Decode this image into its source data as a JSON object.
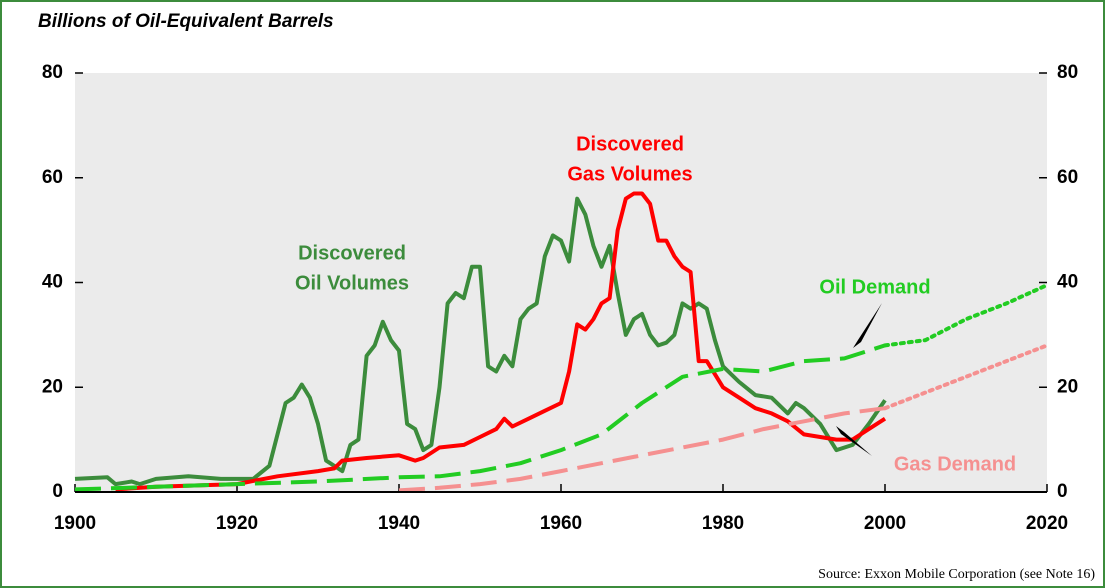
{
  "chart_data": {
    "type": "line",
    "title": "Billions of Oil-Equivalent Barrels",
    "source": "Source: Exxon Mobile Corporation (see Note 16)",
    "xlim": [
      1900,
      2020
    ],
    "xticks": [
      1900,
      1920,
      1940,
      1960,
      1980,
      2000,
      2020
    ],
    "ylim": [
      0,
      80
    ],
    "yticks": [
      0,
      20,
      40,
      60,
      80
    ],
    "y2lim": [
      0,
      80
    ],
    "y2ticks": [
      0,
      20,
      40,
      60,
      80
    ],
    "annotations": [
      {
        "text": "Discovered",
        "color": "#3c8c3c"
      },
      {
        "text": "Oil Volumes",
        "color": "#3c8c3c"
      },
      {
        "text": "Discovered",
        "color": "#ff0000"
      },
      {
        "text": "Gas Volumes",
        "color": "#ff0000"
      },
      {
        "text": "Oil Demand",
        "color": "#22cc22"
      },
      {
        "text": "Gas Demand",
        "color": "#f59090"
      }
    ],
    "series": [
      {
        "color": "#3c8c3c",
        "style": "solid",
        "x": [
          1900,
          1904,
          1905,
          1907,
          1908,
          1910,
          1914,
          1918,
          1922,
          1924,
          1926,
          1927,
          1928,
          1929,
          1930,
          1931,
          1932,
          1933,
          1934,
          1935,
          1936,
          1937,
          1938,
          1939,
          1940,
          1941,
          1942,
          1943,
          1944,
          1945,
          1946,
          1947,
          1948,
          1949,
          1950,
          1951,
          1952,
          1953,
          1954,
          1955,
          1956,
          1957,
          1958,
          1959,
          1960,
          1961,
          1962,
          1963,
          1964,
          1965,
          1966,
          1967,
          1968,
          1969,
          1970,
          1971,
          1972,
          1973,
          1974,
          1975,
          1976,
          1977,
          1978,
          1979,
          1980,
          1982,
          1984,
          1986,
          1988,
          1989,
          1990,
          1992,
          1994,
          1996,
          1998,
          2000
        ],
        "values": [
          2.5,
          2.8,
          1.5,
          2,
          1.5,
          2.5,
          3,
          2.5,
          2.5,
          5,
          17,
          18,
          20.5,
          18,
          13,
          6,
          5,
          4,
          9,
          10,
          26,
          28,
          32.5,
          29,
          27,
          13,
          12,
          8,
          9,
          20,
          36,
          38,
          37,
          43,
          43,
          24,
          23,
          26,
          24,
          33,
          35,
          36,
          45,
          49,
          48,
          44,
          56,
          53,
          47,
          43,
          47,
          38,
          30,
          33,
          34,
          30,
          28,
          28.5,
          30,
          36,
          35,
          36,
          35,
          29,
          24,
          21,
          18.5,
          18,
          15,
          17,
          16,
          13,
          8,
          9,
          13,
          17.5
        ]
      },
      {
        "color": "#ff0000",
        "style": "solid",
        "x": [
          1905,
          1910,
          1920,
          1925,
          1930,
          1932,
          1933,
          1936,
          1940,
          1942,
          1943,
          1945,
          1948,
          1950,
          1952,
          1953,
          1954,
          1956,
          1958,
          1960,
          1961,
          1962,
          1963,
          1964,
          1965,
          1966,
          1967,
          1968,
          1969,
          1970,
          1971,
          1972,
          1973,
          1974,
          1975,
          1976,
          1977,
          1978,
          1980,
          1982,
          1984,
          1986,
          1988,
          1990,
          1992,
          1994,
          1996,
          1998,
          2000
        ],
        "values": [
          0.5,
          1,
          1.5,
          3,
          4,
          4.5,
          6,
          6.5,
          7,
          6,
          6.5,
          8.5,
          9,
          10.5,
          12,
          14,
          12.5,
          14,
          15.5,
          17,
          23,
          32,
          31,
          33,
          36,
          37,
          50,
          56,
          57,
          57,
          55,
          48,
          48,
          45,
          43,
          42,
          25,
          25,
          20,
          18,
          16,
          15,
          13.5,
          11,
          10.5,
          10,
          10,
          12,
          14
        ]
      },
      {
        "color": "#22cc22",
        "style": "dashed",
        "x": [
          1900,
          1910,
          1920,
          1930,
          1940,
          1945,
          1950,
          1955,
          1960,
          1965,
          1970,
          1975,
          1980,
          1985,
          1990,
          1995,
          2000
        ],
        "values": [
          0.5,
          1,
          1.5,
          2,
          2.8,
          3,
          4,
          5.5,
          8,
          11,
          17,
          22,
          23.5,
          23,
          25,
          25.5,
          28
        ]
      },
      {
        "color": "#22cc22",
        "style": "dotted",
        "x": [
          2000,
          2005,
          2010,
          2015,
          2020
        ],
        "values": [
          28,
          29,
          33,
          36,
          39.5
        ]
      },
      {
        "color": "#f59090",
        "style": "dashed",
        "x": [
          1940,
          1945,
          1950,
          1955,
          1960,
          1965,
          1970,
          1975,
          1980,
          1985,
          1990,
          1995,
          2000
        ],
        "values": [
          0.3,
          0.8,
          1.5,
          2.5,
          4,
          5.5,
          7,
          8.5,
          10,
          12,
          13.5,
          15,
          16
        ]
      },
      {
        "color": "#f59090",
        "style": "dotted",
        "x": [
          2000,
          2005,
          2010,
          2015,
          2020
        ],
        "values": [
          16,
          19,
          22,
          25,
          28
        ]
      }
    ]
  }
}
